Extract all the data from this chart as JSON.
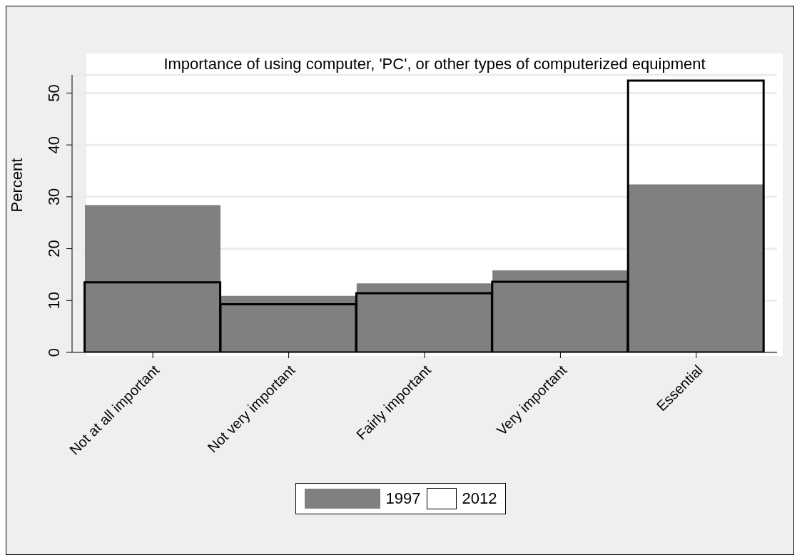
{
  "chart_data": {
    "type": "bar",
    "title": "Importance of using computer, 'PC', or other types of computerized equipment",
    "ylabel": "Percent",
    "categories": [
      "Not at all important",
      "Not very important",
      "Fairly important",
      "Very important",
      "Essential"
    ],
    "series": [
      {
        "name": "1997",
        "color": "#808080",
        "values": [
          28.4,
          10.9,
          13.3,
          15.8,
          32.4
        ]
      },
      {
        "name": "2012",
        "color": "#000000",
        "values": [
          13.5,
          9.3,
          11.4,
          13.6,
          52.4
        ]
      }
    ],
    "ylim": [
      0,
      53.5
    ],
    "yticks": [
      0,
      10,
      20,
      30,
      40,
      50
    ],
    "grid": "y",
    "legend": "bottom"
  }
}
